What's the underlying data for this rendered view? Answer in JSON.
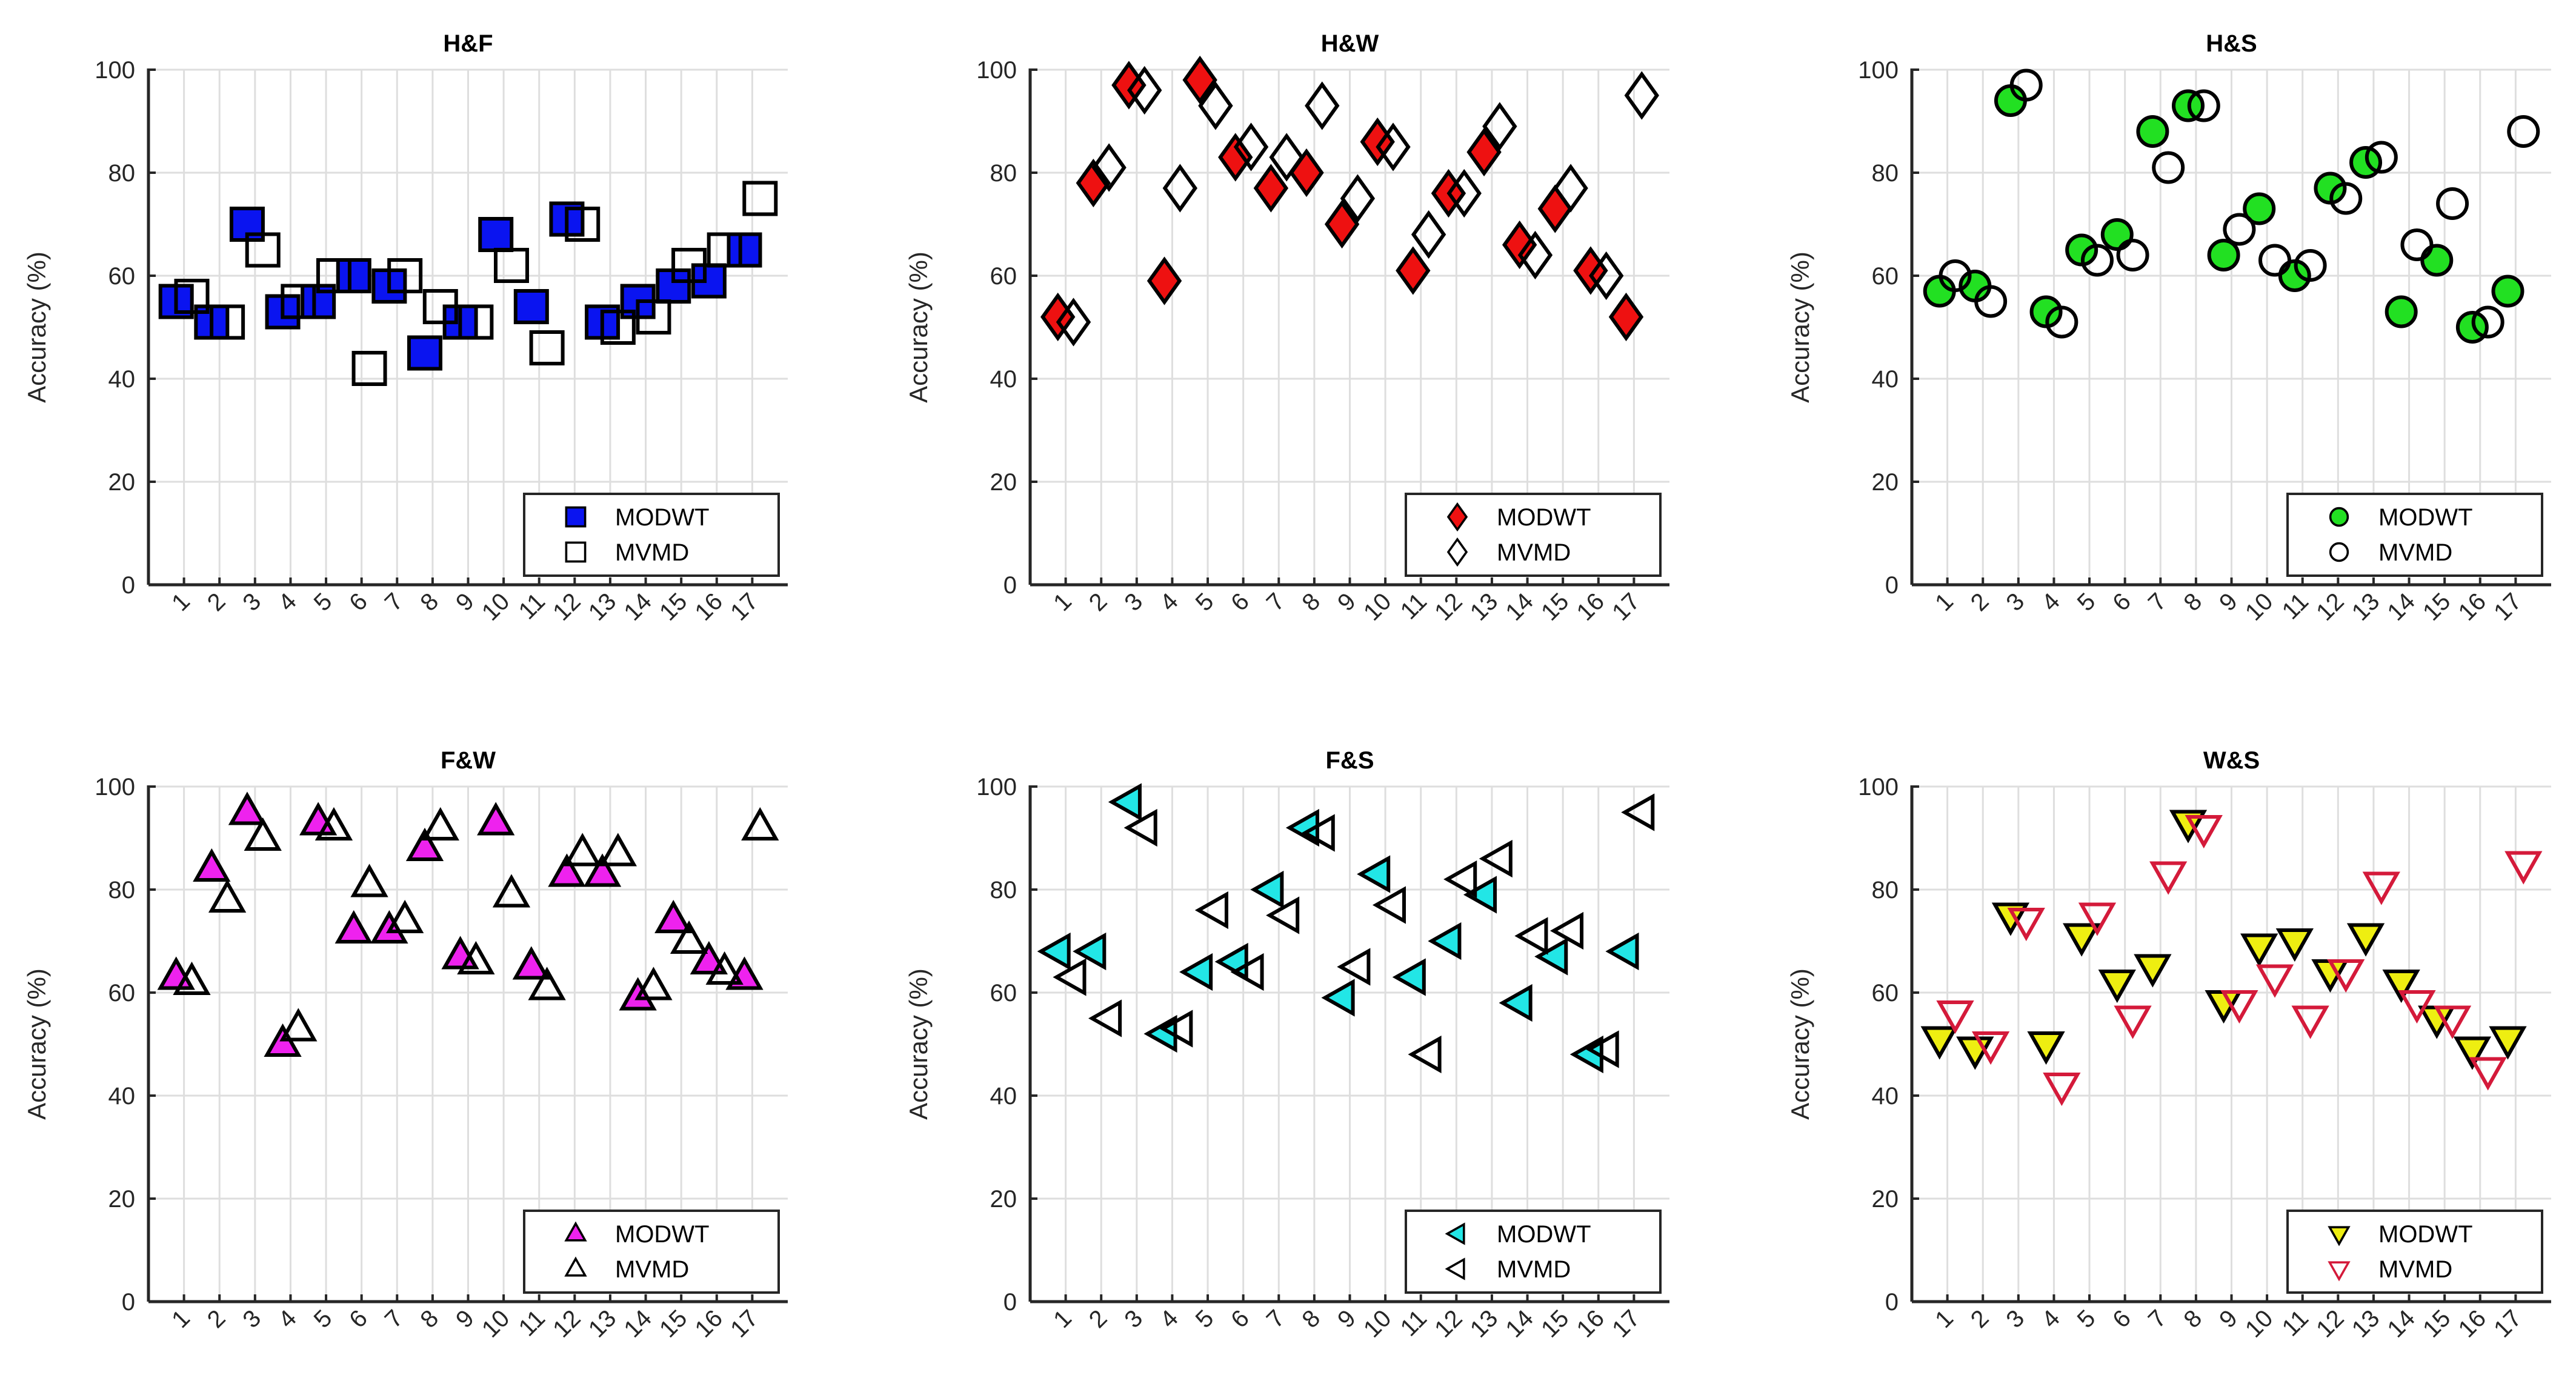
{
  "chart_data": [
    {
      "type": "scatter",
      "title": "H&F",
      "xlabel": "",
      "ylabel": "Accuracy (%)",
      "categories": [
        "1",
        "2",
        "3",
        "4",
        "5",
        "6",
        "7",
        "8",
        "9",
        "10",
        "11",
        "12",
        "13",
        "14",
        "15",
        "16",
        "17"
      ],
      "ylim": [
        0,
        100
      ],
      "yticks": [
        0,
        20,
        40,
        60,
        80,
        100
      ],
      "grid": true,
      "legend_position": "bottom-right",
      "series": [
        {
          "name": "MODWT",
          "marker": "square",
          "fill": "#0a14f0",
          "stroke": "#000000",
          "values": [
            55,
            51,
            70,
            53,
            55,
            60,
            58,
            45,
            51,
            68,
            54,
            71,
            51,
            55,
            58,
            59,
            65
          ]
        },
        {
          "name": "MVMD",
          "marker": "square",
          "fill": "none",
          "stroke": "#000000",
          "values": [
            56,
            51,
            65,
            55,
            60,
            42,
            60,
            54,
            51,
            62,
            46,
            70,
            50,
            52,
            62,
            65,
            75
          ]
        }
      ]
    },
    {
      "type": "scatter",
      "title": "H&W",
      "xlabel": "",
      "ylabel": "Accuracy (%)",
      "categories": [
        "1",
        "2",
        "3",
        "4",
        "5",
        "6",
        "7",
        "8",
        "9",
        "10",
        "11",
        "12",
        "13",
        "14",
        "15",
        "16",
        "17"
      ],
      "ylim": [
        0,
        100
      ],
      "yticks": [
        0,
        20,
        40,
        60,
        80,
        100
      ],
      "grid": true,
      "legend_position": "bottom-right",
      "series": [
        {
          "name": "MODWT",
          "marker": "diamond",
          "fill": "#ee1111",
          "stroke": "#000000",
          "values": [
            52,
            78,
            97,
            59,
            98,
            83,
            77,
            80,
            70,
            86,
            61,
            76,
            84,
            66,
            73,
            61,
            52
          ]
        },
        {
          "name": "MVMD",
          "marker": "diamond",
          "fill": "none",
          "stroke": "#000000",
          "values": [
            51,
            81,
            96,
            77,
            93,
            85,
            83,
            93,
            75,
            85,
            68,
            76,
            89,
            64,
            77,
            60,
            95
          ]
        }
      ]
    },
    {
      "type": "scatter",
      "title": "H&S",
      "xlabel": "",
      "ylabel": "Accuracy (%)",
      "categories": [
        "1",
        "2",
        "3",
        "4",
        "5",
        "6",
        "7",
        "8",
        "9",
        "10",
        "11",
        "12",
        "13",
        "14",
        "15",
        "16",
        "17"
      ],
      "ylim": [
        0,
        100
      ],
      "yticks": [
        0,
        20,
        40,
        60,
        80,
        100
      ],
      "grid": true,
      "legend_position": "bottom-right",
      "series": [
        {
          "name": "MODWT",
          "marker": "circle",
          "fill": "#22e022",
          "stroke": "#000000",
          "values": [
            57,
            58,
            94,
            53,
            65,
            68,
            88,
            93,
            64,
            73,
            60,
            77,
            82,
            53,
            63,
            50,
            57
          ]
        },
        {
          "name": "MVMD",
          "marker": "circle",
          "fill": "none",
          "stroke": "#000000",
          "values": [
            60,
            55,
            97,
            51,
            63,
            64,
            81,
            93,
            69,
            63,
            62,
            75,
            83,
            66,
            74,
            51,
            88
          ]
        }
      ]
    },
    {
      "type": "scatter",
      "title": "F&W",
      "xlabel": "",
      "ylabel": "Accuracy (%)",
      "categories": [
        "1",
        "2",
        "3",
        "4",
        "5",
        "6",
        "7",
        "8",
        "9",
        "10",
        "11",
        "12",
        "13",
        "14",
        "15",
        "16",
        "17"
      ],
      "ylim": [
        0,
        100
      ],
      "yticks": [
        0,
        20,
        40,
        60,
        80,
        100
      ],
      "grid": true,
      "legend_position": "bottom-right",
      "series": [
        {
          "name": "MODWT",
          "marker": "triangle-up",
          "fill": "#ee22ee",
          "stroke": "#000000",
          "values": [
            63,
            84,
            95,
            50,
            93,
            72,
            72,
            88,
            67,
            93,
            65,
            83,
            83,
            59,
            74,
            66,
            63
          ]
        },
        {
          "name": "MVMD",
          "marker": "triangle-up",
          "fill": "none",
          "stroke": "#000000",
          "values": [
            62,
            78,
            90,
            53,
            92,
            81,
            74,
            92,
            66,
            79,
            61,
            87,
            87,
            61,
            70,
            64,
            92
          ]
        }
      ]
    },
    {
      "type": "scatter",
      "title": "F&S",
      "xlabel": "",
      "ylabel": "Accuracy (%)",
      "categories": [
        "1",
        "2",
        "3",
        "4",
        "5",
        "6",
        "7",
        "8",
        "9",
        "10",
        "11",
        "12",
        "13",
        "14",
        "15",
        "16",
        "17"
      ],
      "ylim": [
        0,
        100
      ],
      "yticks": [
        0,
        20,
        40,
        60,
        80,
        100
      ],
      "grid": true,
      "legend_position": "bottom-right",
      "series": [
        {
          "name": "MODWT",
          "marker": "triangle-left",
          "fill": "#22e6e6",
          "stroke": "#000000",
          "values": [
            68,
            68,
            97,
            52,
            64,
            66,
            80,
            92,
            59,
            83,
            63,
            70,
            79,
            58,
            67,
            48,
            68
          ]
        },
        {
          "name": "MVMD",
          "marker": "triangle-left",
          "fill": "none",
          "stroke": "#000000",
          "values": [
            63,
            55,
            92,
            53,
            76,
            64,
            75,
            91,
            65,
            77,
            48,
            82,
            86,
            71,
            72,
            49,
            95
          ]
        }
      ]
    },
    {
      "type": "scatter",
      "title": "W&S",
      "xlabel": "",
      "ylabel": "Accuracy (%)",
      "categories": [
        "1",
        "2",
        "3",
        "4",
        "5",
        "6",
        "7",
        "8",
        "9",
        "10",
        "11",
        "12",
        "13",
        "14",
        "15",
        "16",
        "17"
      ],
      "ylim": [
        0,
        100
      ],
      "yticks": [
        0,
        20,
        40,
        60,
        80,
        100
      ],
      "grid": true,
      "legend_position": "bottom-right",
      "series": [
        {
          "name": "MODWT",
          "marker": "triangle-down",
          "fill": "#eeee11",
          "stroke": "#000000",
          "values": [
            51,
            49,
            75,
            50,
            71,
            62,
            65,
            93,
            58,
            69,
            70,
            64,
            71,
            62,
            55,
            49,
            51
          ]
        },
        {
          "name": "MVMD",
          "marker": "triangle-down",
          "fill": "none",
          "stroke": "#d41a3a",
          "values": [
            56,
            50,
            74,
            42,
            75,
            55,
            83,
            92,
            58,
            63,
            55,
            64,
            81,
            58,
            55,
            45,
            85
          ]
        }
      ]
    }
  ]
}
